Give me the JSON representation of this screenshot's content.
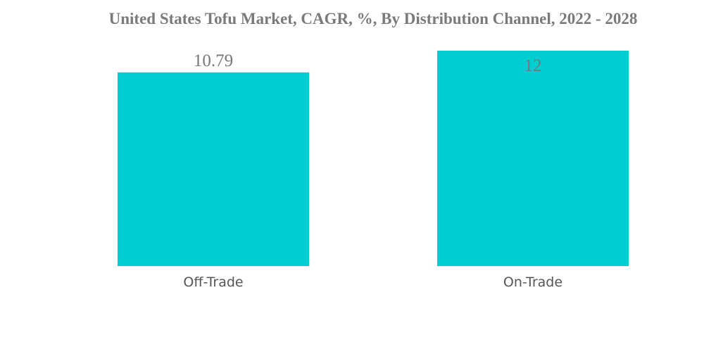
{
  "chart_data": {
    "type": "bar",
    "title": "United States Tofu Market, CAGR, %, By Distribution Channel, 2022 - 2028",
    "categories": [
      "Off-Trade",
      "On-Trade"
    ],
    "values": [
      10.79,
      12
    ],
    "value_labels": [
      "10.79",
      "12"
    ],
    "xlabel": "",
    "ylabel": "",
    "ylim": [
      0,
      12
    ],
    "grid": false,
    "bar_color": "#00CED1"
  }
}
